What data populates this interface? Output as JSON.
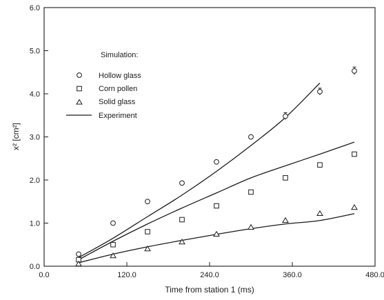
{
  "chart_data": {
    "type": "scatter",
    "title": "",
    "xlabel": "Time from station 1 (ms)",
    "ylabel": "x² [cm²]",
    "xlim": [
      0,
      480
    ],
    "ylim": [
      0,
      6
    ],
    "xticks": [
      "0.0",
      "120.0",
      "240.0",
      "360.0",
      "480.0"
    ],
    "yticks": [
      "0.0",
      "1.0",
      "2.0",
      "3.0",
      "4.0",
      "5.0",
      "6.0"
    ],
    "xtick_values": [
      0,
      120,
      240,
      360,
      480
    ],
    "ytick_values": [
      0,
      1,
      2,
      3,
      4,
      5,
      6
    ],
    "legend_title": "Simulation:",
    "legend_position": "upper-left",
    "grid": false,
    "series": [
      {
        "name": "Hollow glass",
        "marker": "circle",
        "points": [
          {
            "x": 50,
            "y": 0.28
          },
          {
            "x": 100,
            "y": 1.0
          },
          {
            "x": 150,
            "y": 1.5
          },
          {
            "x": 200,
            "y": 1.93
          },
          {
            "x": 250,
            "y": 2.42
          },
          {
            "x": 300,
            "y": 3.0
          },
          {
            "x": 350,
            "y": 3.48,
            "err": 0.08
          },
          {
            "x": 400,
            "y": 4.05,
            "err": 0.08
          },
          {
            "x": 450,
            "y": 4.53,
            "err": 0.09
          }
        ]
      },
      {
        "name": "Corn pollen",
        "marker": "square",
        "points": [
          {
            "x": 50,
            "y": 0.15
          },
          {
            "x": 100,
            "y": 0.5
          },
          {
            "x": 150,
            "y": 0.8
          },
          {
            "x": 200,
            "y": 1.08
          },
          {
            "x": 250,
            "y": 1.4
          },
          {
            "x": 300,
            "y": 1.72
          },
          {
            "x": 350,
            "y": 2.05
          },
          {
            "x": 400,
            "y": 2.35
          },
          {
            "x": 450,
            "y": 2.6
          }
        ]
      },
      {
        "name": "Solid glass",
        "marker": "triangle",
        "points": [
          {
            "x": 50,
            "y": 0.05
          },
          {
            "x": 100,
            "y": 0.24
          },
          {
            "x": 150,
            "y": 0.4
          },
          {
            "x": 200,
            "y": 0.56
          },
          {
            "x": 250,
            "y": 0.74
          },
          {
            "x": 300,
            "y": 0.9
          },
          {
            "x": 350,
            "y": 1.06
          },
          {
            "x": 400,
            "y": 1.22
          },
          {
            "x": 450,
            "y": 1.36
          }
        ]
      }
    ],
    "experiment": {
      "name": "Experiment",
      "lines": [
        {
          "points": [
            [
              50,
              0.2
            ],
            [
              100,
              0.65
            ],
            [
              150,
              1.15
            ],
            [
              200,
              1.65
            ],
            [
              250,
              2.2
            ],
            [
              300,
              2.8
            ],
            [
              350,
              3.45
            ],
            [
              400,
              4.25
            ]
          ]
        },
        {
          "points": [
            [
              50,
              0.15
            ],
            [
              100,
              0.58
            ],
            [
              150,
              0.98
            ],
            [
              200,
              1.35
            ],
            [
              250,
              1.7
            ],
            [
              300,
              2.05
            ],
            [
              350,
              2.33
            ],
            [
              400,
              2.6
            ],
            [
              450,
              2.88
            ]
          ]
        },
        {
          "points": [
            [
              50,
              0.08
            ],
            [
              100,
              0.28
            ],
            [
              150,
              0.45
            ],
            [
              200,
              0.6
            ],
            [
              250,
              0.74
            ],
            [
              300,
              0.87
            ],
            [
              350,
              0.98
            ],
            [
              400,
              1.06
            ],
            [
              450,
              1.22
            ]
          ]
        }
      ]
    }
  }
}
